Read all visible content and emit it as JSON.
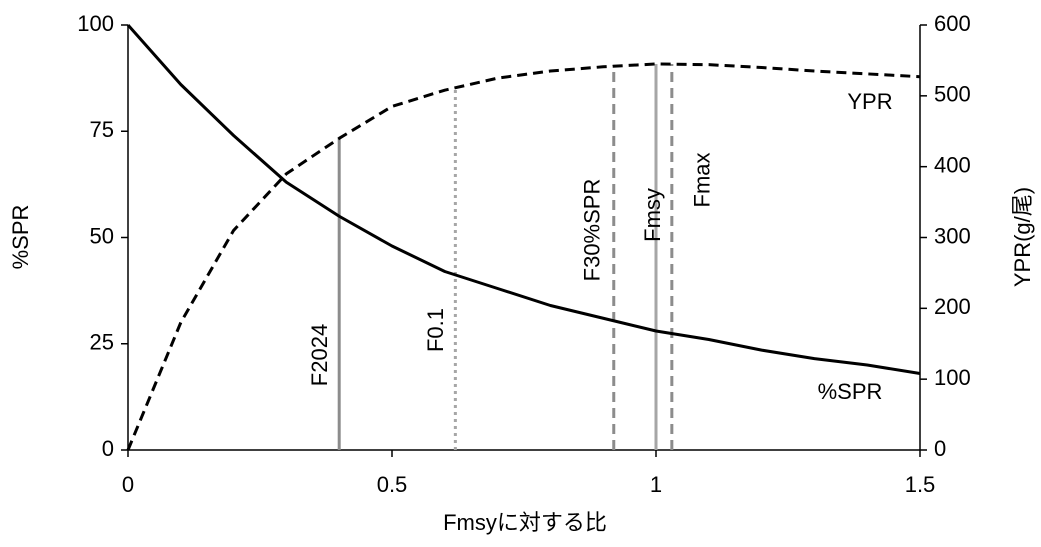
{
  "chart_data": {
    "type": "line",
    "x_label": "Fmsyに対する比",
    "y_label": "%SPR",
    "y2_label": "YPR(g/尾)",
    "x": [
      0,
      0.1,
      0.2,
      0.3,
      0.4,
      0.5,
      0.6,
      0.7,
      0.8,
      0.9,
      1.0,
      1.1,
      1.2,
      1.3,
      1.4,
      1.5
    ],
    "series": [
      {
        "name": "%SPR",
        "color": "#000000",
        "dash": "solid",
        "values": [
          100,
          86,
          74,
          63,
          55,
          48,
          42,
          38,
          34,
          31,
          28,
          26,
          23.5,
          21.5,
          20,
          18
        ]
      },
      {
        "name": "YPR",
        "color": "#000000",
        "dash": "dashed",
        "axis": "y2",
        "values": [
          0,
          180,
          310,
          390,
          440,
          485,
          508,
          525,
          535,
          541,
          545,
          544,
          540,
          535,
          531,
          527
        ]
      }
    ],
    "reference_lines": [
      {
        "label": "F2024",
        "x": 0.4,
        "top": 440,
        "color": "#8c8c8c",
        "dash": "solid"
      },
      {
        "label": "F0.1",
        "x": 0.62,
        "top": 510,
        "color": "#a6a6a6",
        "dash": "dotted"
      },
      {
        "label": "F30%SPR",
        "x": 0.92,
        "top": 543,
        "color": "#8c8c8c",
        "dash": "dashed"
      },
      {
        "label": "Fmsy",
        "x": 1.0,
        "top": 545,
        "color": "#a6a6a6",
        "dash": "solid"
      },
      {
        "label": "Fmax",
        "x": 1.03,
        "top": 545,
        "color": "#8c8c8c",
        "dash": "dashed"
      }
    ],
    "xlim": [
      0,
      1.5
    ],
    "xticks": [
      0,
      0.5,
      1,
      1.5
    ],
    "ylim": [
      0,
      100
    ],
    "yticks": [
      0,
      25,
      50,
      75,
      100
    ],
    "y2lim": [
      0,
      600
    ],
    "y2ticks": [
      0,
      100,
      200,
      300,
      400,
      500,
      600
    ]
  }
}
